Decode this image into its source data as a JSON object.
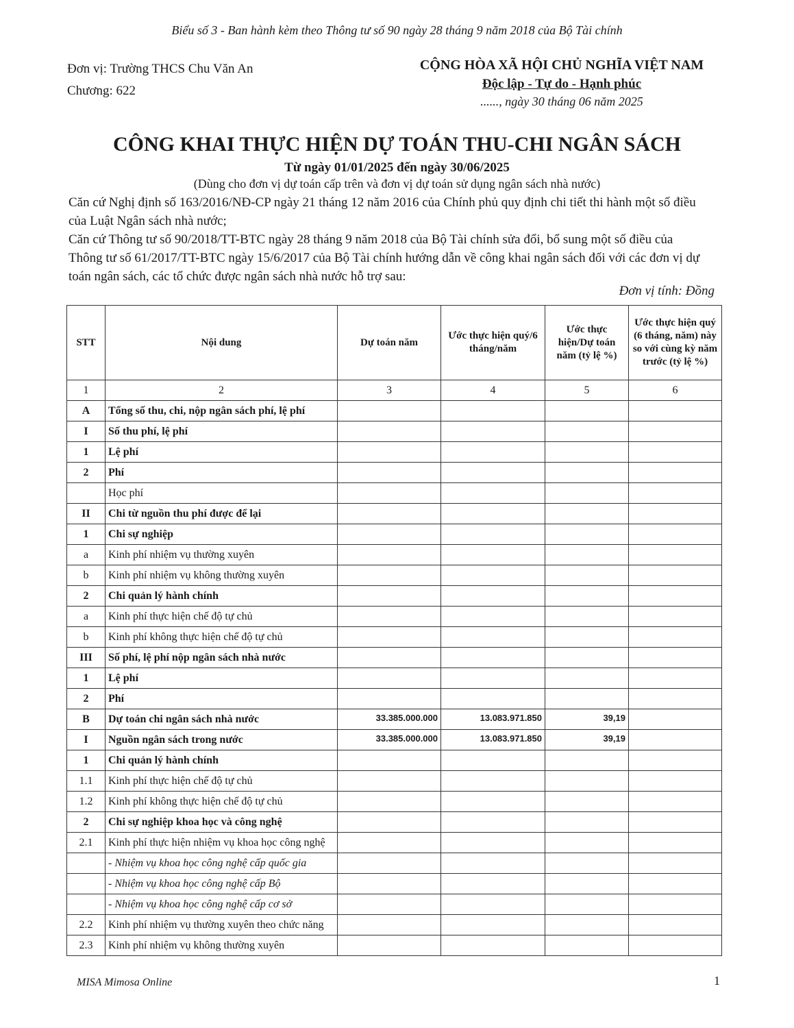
{
  "header": {
    "note": "Biểu số 3 - Ban hành kèm theo Thông tư số 90 ngày 28 tháng 9 năm 2018 của Bộ Tài chính",
    "unit": "Đơn vị: Trường THCS Chu Văn An",
    "chapter": "Chương: 622",
    "nation": "CỘNG HÒA XÃ HỘI CHỦ NGHĨA VIỆT NAM",
    "motto": "Độc lập - Tự do - Hạnh phúc",
    "date": "......, ngày 30 tháng 06 năm 2025"
  },
  "title": "CÔNG KHAI THỰC HIỆN DỰ TOÁN THU-CHI NGÂN SÁCH",
  "period": "Từ ngày 01/01/2025 đến ngày 30/06/2025",
  "scope": "(Dùng cho đơn vị dự toán cấp trên và đơn vị dự toán sử dụng ngân sách nhà nước)",
  "basis": [
    "Căn cứ Nghị định số 163/2016/NĐ-CP ngày 21 tháng 12 năm 2016 của Chính phủ quy định chi tiết thi hành một số điều của Luật Ngân sách nhà nước;",
    "Căn cứ Thông tư số 90/2018/TT-BTC ngày 28 tháng 9 năm 2018 của Bộ Tài chính sửa đổi, bổ sung một số điều của Thông tư số 61/2017/TT-BTC ngày 15/6/2017 của Bộ Tài chính hướng dẫn về công khai ngân sách đối với các đơn vị dự toán ngân sách, các tổ chức được ngân sách nhà nước hỗ trợ sau:"
  ],
  "currency_unit": "Đơn vị tính: Đồng",
  "table": {
    "columns": [
      "STT",
      "Nội dung",
      "Dự toán năm",
      "Ước thực hiện quý/6 tháng/năm",
      "Ước thực hiện/Dự toán năm (tỷ lệ %)",
      "Ước thực hiện quý (6 tháng, năm) này so với cùng kỳ năm trước (tỷ lệ %)"
    ],
    "column_numbers": [
      "1",
      "2",
      "3",
      "4",
      "5",
      "6"
    ],
    "rows": [
      [
        "A",
        "Tổng số thu, chi, nộp ngân sách phí, lệ phí",
        null,
        null,
        null,
        null
      ],
      [
        "I",
        "Số thu phí, lệ phí",
        null,
        null,
        null,
        null
      ],
      [
        "1",
        "Lệ phí",
        null,
        null,
        null,
        null
      ],
      [
        "2",
        "Phí",
        null,
        null,
        null,
        null
      ],
      [
        null,
        "Học phí",
        null,
        null,
        null,
        null
      ],
      [
        "II",
        "Chi từ nguồn thu phí được để lại",
        null,
        null,
        null,
        null
      ],
      [
        "1",
        "Chi sự nghiệp",
        null,
        null,
        null,
        null
      ],
      [
        "a",
        "Kinh phí nhiệm vụ thường xuyên",
        null,
        null,
        null,
        null
      ],
      [
        "b",
        "Kinh phí nhiệm vụ không thường xuyên",
        null,
        null,
        null,
        null
      ],
      [
        "2",
        "Chi quản lý hành chính",
        null,
        null,
        null,
        null
      ],
      [
        "a",
        "Kinh phí thực hiện chế độ tự chủ",
        null,
        null,
        null,
        null
      ],
      [
        "b",
        "Kinh phí không thực hiện chế độ tự chủ",
        null,
        null,
        null,
        null
      ],
      [
        "III",
        "Số phí, lệ phí nộp ngân sách nhà nước",
        null,
        null,
        null,
        null
      ],
      [
        "1",
        "Lệ phí",
        null,
        null,
        null,
        null
      ],
      [
        "2",
        "Phí",
        null,
        null,
        null,
        null
      ],
      [
        "B",
        "Dự toán chi ngân sách nhà nước",
        "33.385.000.000",
        "13.083.971.850",
        "39,19",
        null
      ],
      [
        "I",
        "Nguồn ngân sách trong nước",
        "33.385.000.000",
        "13.083.971.850",
        "39,19",
        null
      ],
      [
        "1",
        "Chi quản lý hành chính",
        null,
        null,
        null,
        null
      ],
      [
        "1.1",
        "Kinh phí thực hiện chế độ tự chủ",
        null,
        null,
        null,
        null
      ],
      [
        "1.2",
        "Kinh phí không thực hiện chế độ tự chủ",
        null,
        null,
        null,
        null
      ],
      [
        "2",
        "Chi sự nghiệp khoa học và công nghệ",
        null,
        null,
        null,
        null
      ],
      [
        "2.1",
        "Kinh phí thực hiện nhiệm vụ khoa học công nghệ",
        null,
        null,
        null,
        null
      ],
      [
        null,
        "- Nhiệm vụ khoa học công nghệ cấp quốc gia",
        null,
        null,
        null,
        null
      ],
      [
        null,
        "- Nhiệm vụ khoa học công nghệ cấp Bộ",
        null,
        null,
        null,
        null
      ],
      [
        null,
        "- Nhiệm vụ khoa học công nghệ cấp cơ sở",
        null,
        null,
        null,
        null
      ],
      [
        "2.2",
        "Kinh phí nhiệm vụ thường xuyên theo chức năng",
        null,
        null,
        null,
        null
      ],
      [
        "2.3",
        "Kinh phí nhiệm vụ không thường xuyên",
        null,
        null,
        null,
        null
      ]
    ]
  },
  "footer": {
    "software": "MISA Mimosa Online",
    "page": "1"
  }
}
